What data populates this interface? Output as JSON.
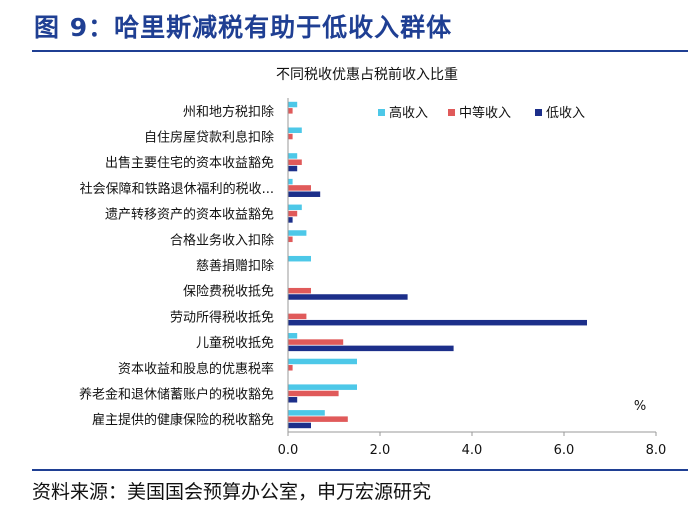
{
  "header": {
    "title": "图 9：哈里斯减税有助于低收入群体"
  },
  "footer": {
    "source": "资料来源：美国国会预算办公室，申万宏源研究"
  },
  "colors": {
    "high": "#4dc8e8",
    "middle": "#e05a5a",
    "low": "#1c2f8a",
    "rule": "#1f3f93"
  },
  "chart_data": {
    "type": "bar",
    "orientation": "horizontal",
    "title": "不同税收优惠占税前收入比重",
    "unit_label": "%",
    "xlim": [
      0,
      8
    ],
    "xticks": [
      "0.0",
      "2.0",
      "4.0",
      "6.0",
      "8.0"
    ],
    "xtick_values": [
      0,
      2,
      4,
      6,
      8
    ],
    "legend_position": "top-right",
    "categories": [
      "州和地方税扣除",
      "自住房屋贷款利息扣除",
      "出售主要住宅的资本收益豁免",
      "社会保障和铁路退休福利的税收...",
      "遗产转移资产的资本收益豁免",
      "合格业务收入扣除",
      "慈善捐赠扣除",
      "保险费税收抵免",
      "劳动所得税收抵免",
      "儿童税收抵免",
      "资本收益和股息的优惠税率",
      "养老金和退休储蓄账户的税收豁免",
      "雇主提供的健康保险的税收豁免"
    ],
    "series": [
      {
        "name": "高收入",
        "key": "high",
        "values": [
          0.2,
          0.3,
          0.2,
          0.1,
          0.3,
          0.4,
          0.5,
          0.0,
          0.0,
          0.2,
          1.5,
          1.5,
          0.8
        ]
      },
      {
        "name": "中等收入",
        "key": "middle",
        "values": [
          0.1,
          0.1,
          0.3,
          0.5,
          0.2,
          0.1,
          0.0,
          0.5,
          0.4,
          1.2,
          0.1,
          1.1,
          1.3
        ]
      },
      {
        "name": "低收入",
        "key": "low",
        "values": [
          0.0,
          0.0,
          0.2,
          0.7,
          0.1,
          0.0,
          0.0,
          2.6,
          6.5,
          3.6,
          0.0,
          0.2,
          0.5
        ]
      }
    ]
  }
}
